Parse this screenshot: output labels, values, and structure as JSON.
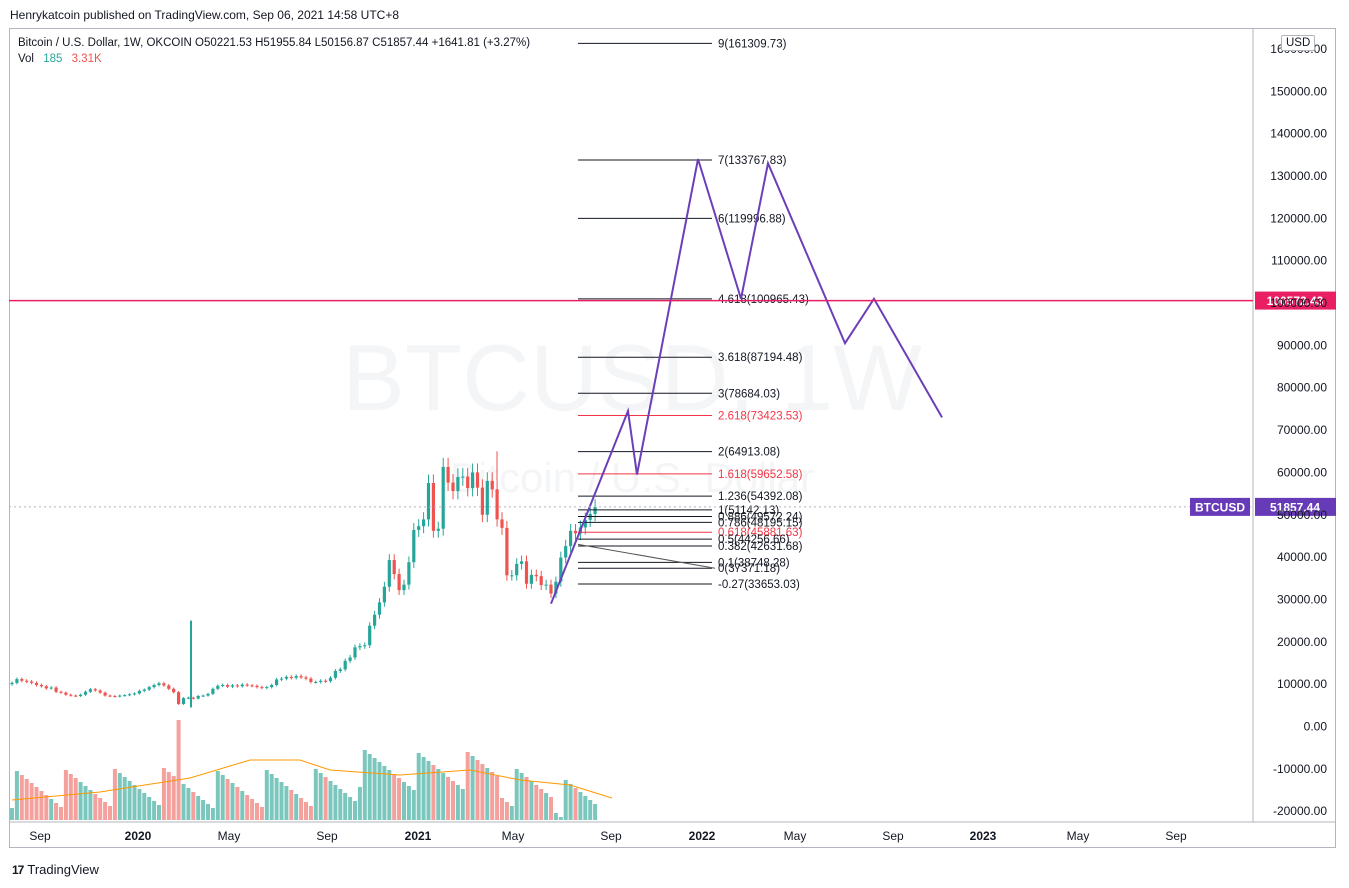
{
  "header": {
    "publisher_line": "Henrykatcoin published on TradingView.com, Sep 06, 2021 14:58 UTC+8"
  },
  "legend": {
    "symbol_line": "Bitcoin / U.S. Dollar, 1W, OKCOIN  O50221.53  H51955.84  L50156.87  C51857.44  +1641.81 (+3.27%)",
    "vol_label": "Vol",
    "vol_value_1": "185",
    "vol_value_2": "3.31K"
  },
  "currency_button": "USD",
  "watermark": {
    "symbol": "BTCUSD, 1W",
    "name": "Bitcoin / U.S. Dollar"
  },
  "footer": {
    "logo_mark": "17",
    "logo_text": "TradingView"
  },
  "colors": {
    "up": "#26a69a",
    "down": "#ef5350",
    "projection": "#6b3fb8",
    "resistance": "#e91e63",
    "fib_line": "#131722",
    "fib_red": "#f23645",
    "btc_label_bg": "#673ab7"
  },
  "chart_data": {
    "type": "candlestick",
    "symbol": "BTCUSD",
    "interval": "1W",
    "ylim": [
      -22000,
      165000
    ],
    "y_ticks": [
      "160000.00",
      "150000.00",
      "140000.00",
      "130000.00",
      "120000.00",
      "110000.00",
      "100000.00",
      "90000.00",
      "80000.00",
      "70000.00",
      "60000.00",
      "50000.00",
      "40000.00",
      "30000.00",
      "20000.00",
      "10000.00",
      "0.00",
      "-10000.00",
      "-20000.00"
    ],
    "x_ticks": [
      {
        "label": "Sep",
        "bold": false
      },
      {
        "label": "2020",
        "bold": true
      },
      {
        "label": "May",
        "bold": false
      },
      {
        "label": "Sep",
        "bold": false
      },
      {
        "label": "2021",
        "bold": true
      },
      {
        "label": "May",
        "bold": false
      },
      {
        "label": "Sep",
        "bold": false
      },
      {
        "label": "2022",
        "bold": true
      },
      {
        "label": "May",
        "bold": false
      },
      {
        "label": "Sep",
        "bold": false
      },
      {
        "label": "2023",
        "bold": true
      },
      {
        "label": "May",
        "bold": false
      },
      {
        "label": "Sep",
        "bold": false
      }
    ],
    "price_labels": [
      {
        "value": 100572.43,
        "text": "100572.43",
        "kind": "resistance"
      },
      {
        "value": 51857.44,
        "text": "51857.44",
        "kind": "last",
        "tag": "BTCUSD"
      }
    ],
    "fib_levels": [
      {
        "ratio_label": "9(161309.73)",
        "value": 161309.73,
        "red": false
      },
      {
        "ratio_label": "7(133767.83)",
        "value": 133767.83,
        "red": false
      },
      {
        "ratio_label": "6(119996.88)",
        "value": 119996.88,
        "red": false
      },
      {
        "ratio_label": "4.618(100965.43)",
        "value": 100965.43,
        "red": false
      },
      {
        "ratio_label": "3.618(87194.48)",
        "value": 87194.48,
        "red": false
      },
      {
        "ratio_label": "3(78684.03)",
        "value": 78684.03,
        "red": false
      },
      {
        "ratio_label": "2.618(73423.53)",
        "value": 73423.53,
        "red": true
      },
      {
        "ratio_label": "2(64913.08)",
        "value": 64913.08,
        "red": false
      },
      {
        "ratio_label": "1.618(59652.58)",
        "value": 59652.58,
        "red": true
      },
      {
        "ratio_label": "1.236(54392.08)",
        "value": 54392.08,
        "red": false
      },
      {
        "ratio_label": "1(51142.13)",
        "value": 51142.13,
        "red": false
      },
      {
        "ratio_label": "0.886(49572.24)",
        "value": 49572.24,
        "red": false
      },
      {
        "ratio_label": "0.786(48195.15)",
        "value": 48195.15,
        "red": false
      },
      {
        "ratio_label": "0.618(45881.63)",
        "value": 45881.63,
        "red": true
      },
      {
        "ratio_label": "0.5(44256.66)",
        "value": 44256.66,
        "red": false
      },
      {
        "ratio_label": "0.382(42631.68)",
        "value": 42631.68,
        "red": false
      },
      {
        "ratio_label": "0.1(38748.28)",
        "value": 38748.28,
        "red": false
      },
      {
        "ratio_label": "0(37371.18)",
        "value": 37371.18,
        "red": false
      },
      {
        "ratio_label": "-0.27(33653.03)",
        "value": 33653.03,
        "red": false
      }
    ],
    "projection_path_prices": [
      29000,
      74500,
      59500,
      134000,
      101000,
      133000,
      90500,
      101000,
      73000
    ],
    "candles_close": [
      10300,
      11200,
      10800,
      10600,
      10300,
      9800,
      9500,
      9000,
      9200,
      8200,
      8000,
      7500,
      7300,
      7200,
      7500,
      8200,
      8800,
      8500,
      8000,
      7300,
      7200,
      7100,
      7300,
      7400,
      7600,
      7800,
      8400,
      8700,
      9300,
      9800,
      10200,
      9700,
      8900,
      8100,
      5300,
      6700,
      6800,
      6600,
      7200,
      7300,
      7700,
      8900,
      9600,
      9800,
      9400,
      9700,
      9500,
      9900,
      9700,
      9600,
      9300,
      9100,
      9300,
      9800,
      11100,
      11300,
      11700,
      11500,
      11900,
      11600,
      11300,
      10500,
      10500,
      10800,
      10700,
      11500,
      13100,
      13500,
      15500,
      16300,
      18700,
      19000,
      19200,
      23800,
      26400,
      29300,
      33000,
      39300,
      36000,
      32200,
      33500,
      38800,
      46400,
      47300,
      48900,
      57500,
      46200,
      46700,
      61300,
      57600,
      55600,
      58900,
      59000,
      56300,
      60000,
      56400,
      50000,
      58000,
      56000,
      48900,
      46900,
      35700,
      35700,
      38400,
      39000,
      33700,
      35800,
      35500,
      33400,
      33500,
      31400,
      34200,
      39900,
      42600,
      46200,
      45600,
      47000,
      48800,
      50200,
      51857
    ],
    "volume_scale_note": "relative volume bars at bottom of pane"
  }
}
